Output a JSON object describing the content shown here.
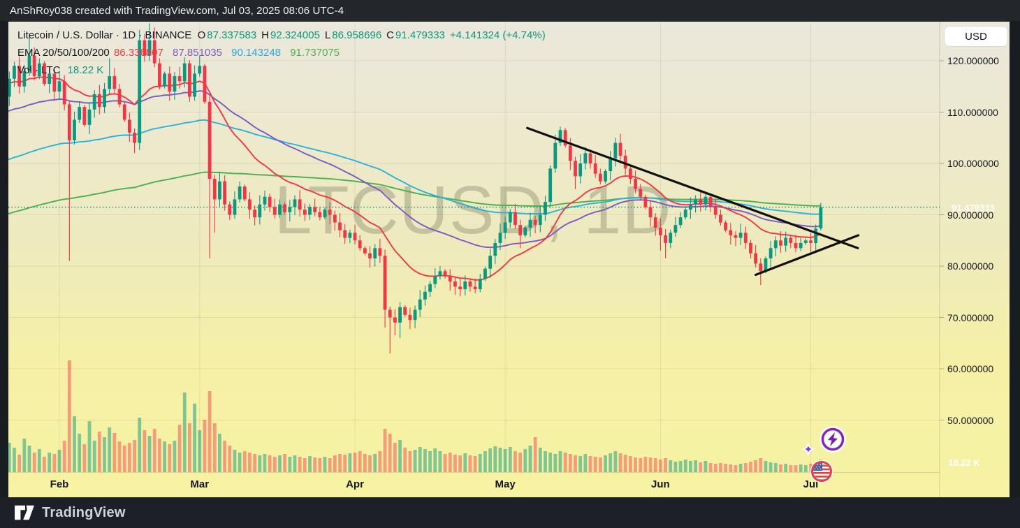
{
  "topbar": {
    "attribution": "AnShRoy038 created with TradingView.com, Jul 03, 2025 08:06 UTC-4"
  },
  "watermark": "LTCUSD, 1D",
  "legend": {
    "title": "Litecoin / U.S. Dollar · 1D · BINANCE",
    "ohlc": [
      {
        "label": "O",
        "value": "87.337583"
      },
      {
        "label": "H",
        "value": "92.324005"
      },
      {
        "label": "L",
        "value": "86.958696"
      },
      {
        "label": "C",
        "value": "91.479333"
      }
    ],
    "change": "+4.141324 (+4.74%)",
    "ema_label": "EMA 20/50/100/200",
    "ema_values": [
      "86.336807",
      "87.851035",
      "90.143248",
      "91.737075"
    ],
    "vol_label": "Vol · LTC",
    "vol_value": "18.22 K"
  },
  "axis": {
    "currency_button": "USD",
    "price_label": "91.479333",
    "volume_label": "18.22 K",
    "price_ticks": [
      {
        "value": 120,
        "label": "120.000000"
      },
      {
        "value": 110,
        "label": "110.000000"
      },
      {
        "value": 100,
        "label": "100.000000"
      },
      {
        "value": 90,
        "label": "90.000000"
      },
      {
        "value": 80,
        "label": "80.000000"
      },
      {
        "value": 70,
        "label": "70.000000"
      },
      {
        "value": 60,
        "label": "60.000000"
      },
      {
        "value": 50,
        "label": "50.000000"
      }
    ]
  },
  "footer": {
    "brand": "TradingView"
  },
  "colors": {
    "up": "#089981",
    "down": "#f23645",
    "volume_up": "rgba(8,153,129,0.5)",
    "volume_down": "rgba(242,54,69,0.45)",
    "ema20": "#f23645",
    "ema50": "#7e57c2",
    "ema100": "#2ab2d8",
    "ema200": "#4caf50",
    "badge": "#0f9382",
    "trendline": "#101010",
    "grid": "rgba(0,0,0,0.08)",
    "dotted_line": "#089981"
  },
  "chart_data": {
    "type": "candlestick+volume",
    "symbol": "LTCUSD",
    "exchange": "BINANCE",
    "interval": "1D",
    "start_date": "2025-01-21",
    "end_date": "2025-07-03",
    "price_axis_range": [
      40,
      127.5
    ],
    "first_open": 110,
    "closes": [
      113,
      116.5,
      119,
      115,
      118,
      121,
      117,
      119.5,
      115.5,
      117.5,
      114,
      116,
      111.5,
      104.5,
      108.5,
      111,
      107.5,
      110.5,
      113.5,
      111,
      114.5,
      117,
      114.5,
      111.5,
      108.5,
      106,
      104,
      124,
      121,
      124,
      119.5,
      115,
      117.5,
      114,
      117,
      116,
      119.5,
      113,
      117.5,
      119,
      112,
      97,
      93,
      96.5,
      92,
      90,
      93,
      95.5,
      93,
      91,
      89.5,
      92,
      93.5,
      91.5,
      90,
      92,
      90.5,
      91.5,
      93,
      91,
      90,
      91.5,
      90.5,
      89.5,
      91,
      90,
      88.5,
      87,
      85.5,
      86.5,
      85,
      83.5,
      82.5,
      81.5,
      83.5,
      82,
      71.5,
      70,
      69,
      72,
      70.5,
      69.5,
      71.5,
      73.5,
      75,
      76.5,
      78,
      79,
      78,
      77,
      76,
      75.5,
      77,
      76,
      75.5,
      77.5,
      79.5,
      82,
      84.5,
      86.5,
      88.5,
      90.5,
      88,
      86,
      87.5,
      89,
      88,
      90,
      92.5,
      99,
      104,
      106.5,
      103.5,
      100.5,
      97.5,
      100,
      102,
      100,
      98,
      96.5,
      98.5,
      101,
      104,
      101.5,
      99,
      97,
      95,
      93.5,
      91.5,
      89.5,
      87.5,
      86,
      84.5,
      86.5,
      88,
      89.5,
      91,
      92,
      93,
      92,
      93.5,
      91.5,
      90,
      88.5,
      87,
      86,
      85.5,
      86.5,
      84.5,
      82.5,
      80.5,
      79,
      81.5,
      83.5,
      85,
      84,
      85.5,
      84.5,
      83.5,
      84.5,
      85,
      84.5,
      87.3,
      91.479333
    ],
    "volumes_k": [
      30,
      42,
      35,
      25,
      48,
      38,
      28,
      33,
      22,
      28,
      26,
      32,
      45,
      160,
      80,
      55,
      40,
      73,
      45,
      58,
      50,
      64,
      56,
      44,
      38,
      42,
      46,
      78,
      60,
      52,
      62,
      48,
      44,
      40,
      45,
      68,
      114,
      70,
      98,
      60,
      75,
      116,
      70,
      55,
      45,
      38,
      32,
      28,
      30,
      28,
      26,
      24,
      26,
      24,
      22,
      24,
      26,
      22,
      24,
      22,
      20,
      23,
      21,
      20,
      22,
      20,
      24,
      26,
      25,
      27,
      28,
      30,
      26,
      24,
      26,
      30,
      62,
      55,
      42,
      46,
      35,
      30,
      32,
      36,
      33,
      30,
      34,
      30,
      26,
      28,
      25,
      24,
      27,
      24,
      23,
      26,
      30,
      34,
      37,
      35,
      33,
      36,
      30,
      28,
      33,
      38,
      50,
      35,
      30,
      28,
      26,
      30,
      28,
      26,
      24,
      23,
      26,
      23,
      22,
      21,
      24,
      27,
      30,
      27,
      25,
      23,
      21,
      20,
      22,
      21,
      20,
      18,
      20,
      17,
      15,
      16,
      18,
      16,
      17,
      14,
      16,
      13,
      12,
      13,
      12,
      11,
      10,
      12,
      13,
      15,
      17,
      20,
      16,
      14,
      13,
      11,
      12,
      10,
      10,
      11,
      10,
      12,
      14,
      18.22
    ],
    "open_overrides": {
      "163": 87.337583
    },
    "high_overrides": {
      "5": 124.5,
      "21": 120.5,
      "27": 126,
      "29": 127.3,
      "30": 126.5,
      "39": 121,
      "111": 107.2,
      "122": 105,
      "140": 94.3,
      "163": 92.324005
    },
    "low_overrides": {
      "13": 81,
      "26": 102,
      "41": 81.5,
      "42": 86.5,
      "76": 68,
      "77": 63,
      "78": 66.5,
      "79": 66,
      "103": 83.5,
      "114": 95,
      "131": 83,
      "132": 81.5,
      "151": 76.3,
      "162": 83,
      "163": 86.958696
    },
    "last_candle": {
      "open": 87.337583,
      "high": 92.324005,
      "low": 86.958696,
      "close": 91.479333,
      "change": "+4.141324 (+4.74%)",
      "volume": "18.22 K"
    },
    "ema_periods": [
      20,
      50,
      100,
      200
    ],
    "ema_seeds": [
      115.5,
      110,
      100.5,
      90
    ],
    "ema_last_values": [
      86.336807,
      87.851035,
      90.143248,
      91.737075
    ],
    "dotted_price_line": 91.479333,
    "month_ticks": {
      "Feb": 11,
      "Mar": 39,
      "Apr": 70,
      "May": 100,
      "Jun": 131,
      "Jul": 161
    },
    "trendlines": [
      {
        "i1": 104.4,
        "p1": 106.9,
        "i2": 170.4,
        "p2": 83.5
      },
      {
        "i1": 150.0,
        "p1": 78.3,
        "i2": 170.5,
        "p2": 86.0
      }
    ]
  }
}
